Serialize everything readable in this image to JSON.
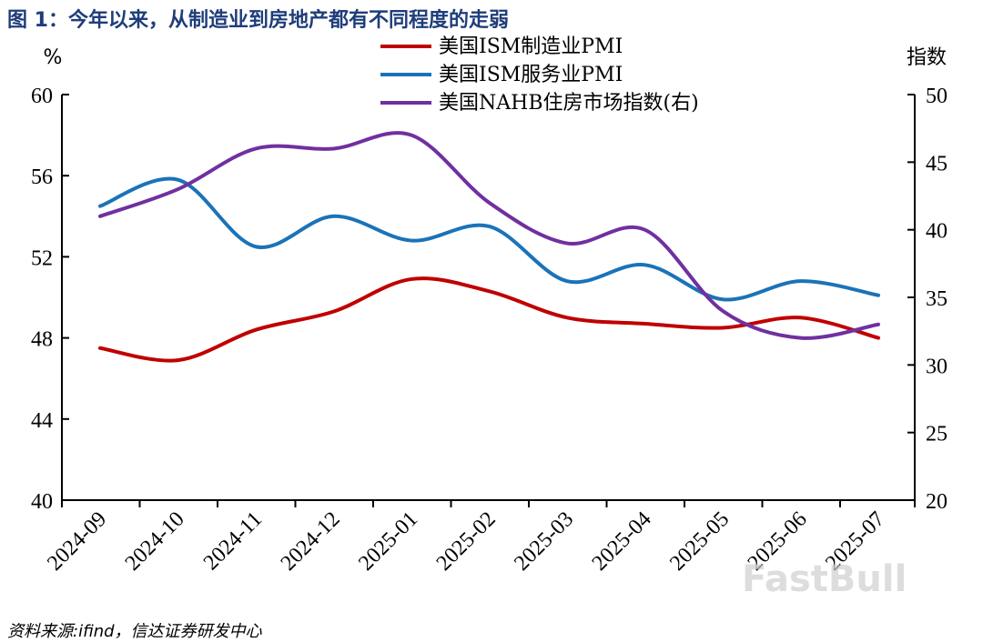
{
  "title": "图 1：今年以来，从制造业到房地产都有不同程度的走弱",
  "source": "资料来源:ifind，信达证券研发中心",
  "watermark": "FastBull",
  "chart_data": {
    "type": "line",
    "left_unit": "%",
    "right_unit": "指数",
    "categories": [
      "2024-09",
      "2024-10",
      "2024-11",
      "2024-12",
      "2025-01",
      "2025-02",
      "2025-03",
      "2025-04",
      "2025-05",
      "2025-06",
      "2025-07"
    ],
    "left_axis": {
      "min": 40,
      "max": 60,
      "ticks": [
        40,
        44,
        48,
        52,
        56,
        60
      ]
    },
    "right_axis": {
      "min": 20,
      "max": 50,
      "ticks": [
        20,
        25,
        30,
        35,
        40,
        45,
        50
      ]
    },
    "series": [
      {
        "name": "美国ISM制造业PMI",
        "axis": "left",
        "color": "#c00000",
        "values": [
          47.5,
          46.9,
          48.4,
          49.3,
          50.9,
          50.3,
          49.0,
          48.7,
          48.5,
          49.0,
          48.0
        ]
      },
      {
        "name": "美国ISM服务业PMI",
        "axis": "left",
        "color": "#1a73b8",
        "values": [
          54.5,
          55.8,
          52.5,
          54.0,
          52.8,
          53.5,
          50.8,
          51.6,
          49.9,
          50.8,
          50.1
        ]
      },
      {
        "name": "美国NAHB住房市场指数(右)",
        "axis": "right",
        "color": "#7030a0",
        "values": [
          41,
          43,
          46,
          46,
          47,
          42,
          39,
          40,
          34,
          32,
          33
        ]
      }
    ]
  }
}
